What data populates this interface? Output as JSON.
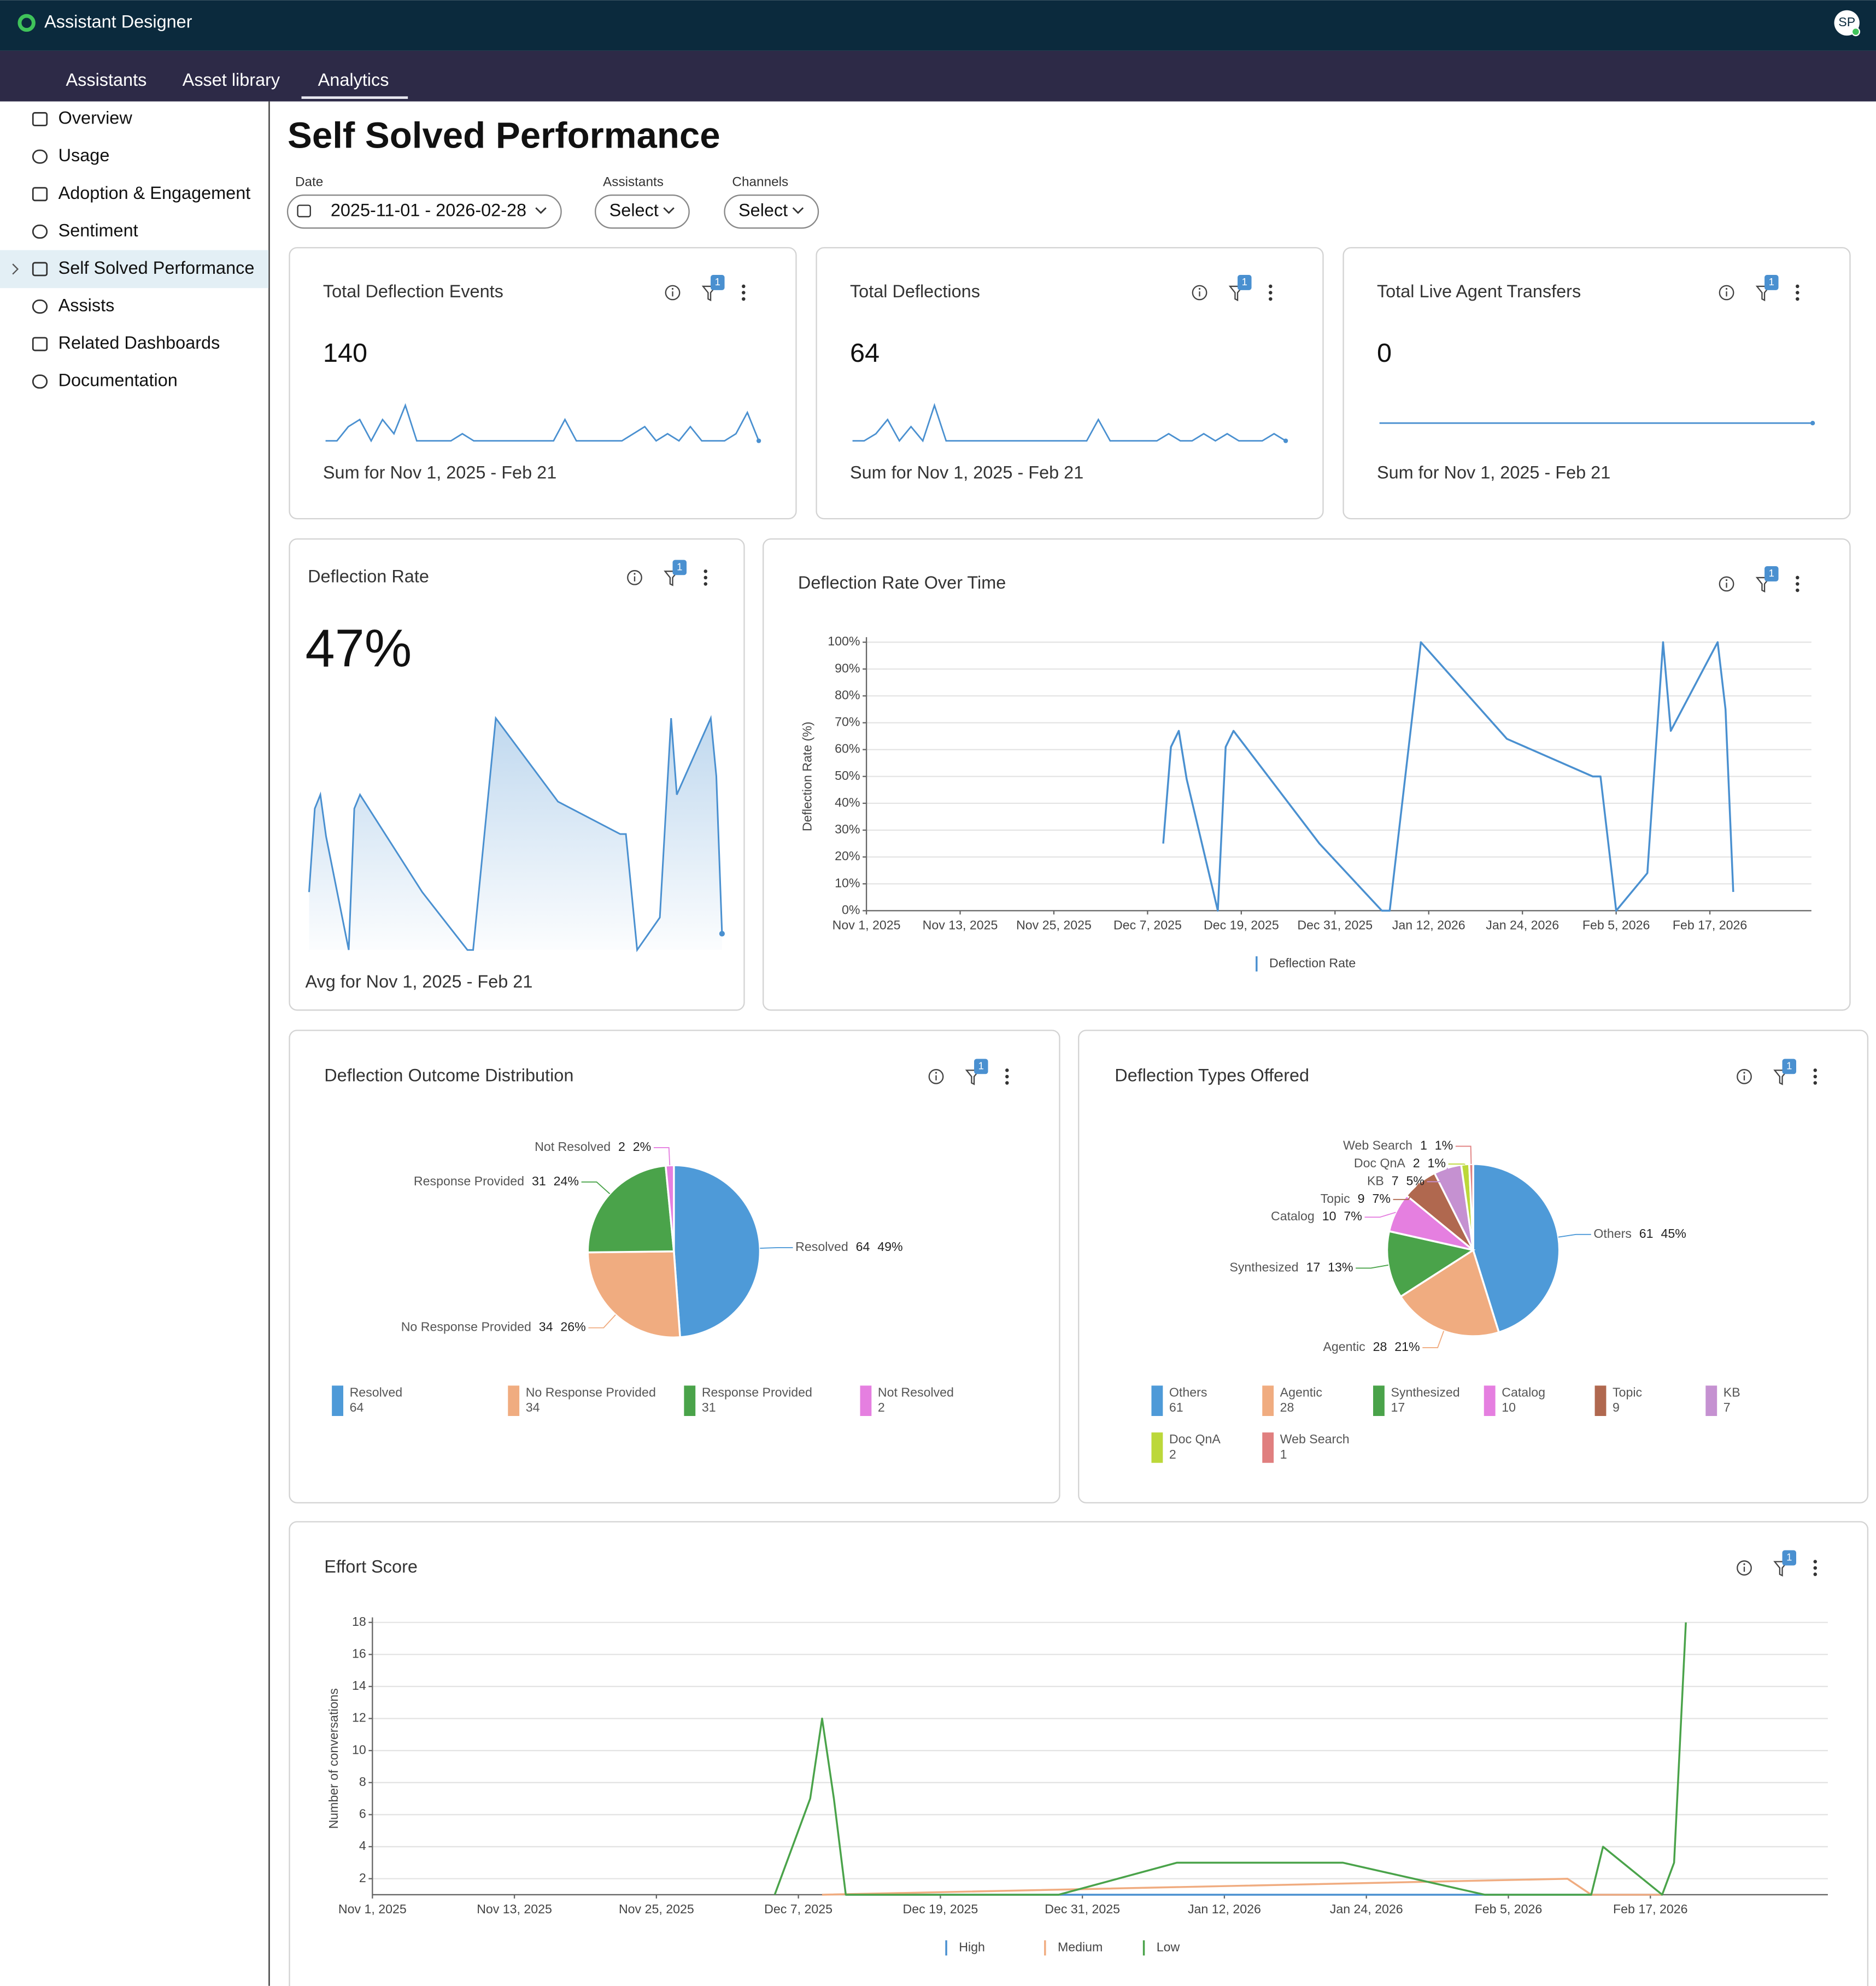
{
  "header": {
    "app_title": "Assistant Designer",
    "avatar": "SP"
  },
  "nav_tabs": [
    "Assistants",
    "Asset library",
    "Analytics"
  ],
  "sidebar": [
    "Overview",
    "Usage",
    "Adoption & Engagement",
    "Sentiment",
    "Self Solved Performance",
    "Assists",
    "Related Dashboards",
    "Documentation"
  ],
  "page_title": "Self Solved Performance",
  "filters": [
    {
      "label": "Date",
      "value": "2025-11-01 - 2026-02-28"
    },
    {
      "label": "Assistants",
      "value": "Select"
    },
    {
      "label": "Channels",
      "value": "Select"
    }
  ],
  "chart_data": [
    {
      "type": "sparkline",
      "title": "Total Deflection Events",
      "kpi": 140,
      "caption": "Sum for Nov 1, 2025 - Feb 21",
      "filter_badge": "1",
      "color": "#4a90d0",
      "values": [
        0,
        0,
        2,
        3,
        0,
        3,
        1,
        5,
        0,
        0,
        0,
        0,
        1,
        0,
        0,
        0,
        0,
        0,
        0,
        0,
        0,
        3,
        0,
        0,
        0,
        0,
        0,
        1,
        2,
        0,
        1,
        0,
        2,
        0,
        0,
        0,
        1,
        4,
        0
      ]
    },
    {
      "type": "sparkline",
      "title": "Total Deflections",
      "kpi": 64,
      "caption": "Sum for Nov 1, 2025 - Feb 21",
      "filter_badge": "1",
      "color": "#4a90d0",
      "values": [
        0,
        0,
        1,
        3,
        0,
        2,
        0,
        5,
        0,
        0,
        0,
        0,
        0,
        0,
        0,
        0,
        0,
        0,
        0,
        0,
        0,
        3,
        0,
        0,
        0,
        0,
        0,
        1,
        0,
        0,
        1,
        0,
        1,
        0,
        0,
        0,
        1,
        0
      ]
    },
    {
      "type": "sparkline",
      "title": "Total Live Agent Transfers",
      "kpi": 0,
      "caption": "Sum for Nov 1, 2025 - Feb 21",
      "filter_badge": "1",
      "color": "#4a90d0",
      "values": [
        0,
        0,
        0,
        0,
        0,
        0,
        0,
        0,
        0,
        0,
        0,
        0,
        0,
        0,
        0,
        0,
        0,
        0,
        0,
        0
      ]
    },
    {
      "type": "area-sparkline",
      "title": "Deflection Rate",
      "kpi": "47%",
      "caption": "Avg for Nov 1, 2025 - Feb 21",
      "filter_badge": "1",
      "color": "#4a90d0",
      "x": [
        "2025-12-09",
        "2025-12-10",
        "2025-12-11",
        "2025-12-12",
        "2025-12-16",
        "2025-12-17",
        "2025-12-18",
        "2025-12-29",
        "2026-01-06",
        "2026-01-07",
        "2026-01-11",
        "2026-01-22",
        "2026-02-02",
        "2026-02-03",
        "2026-02-05",
        "2026-02-09",
        "2026-02-11",
        "2026-02-12",
        "2026-02-18",
        "2026-02-19",
        "2026-02-20"
      ],
      "values": [
        25,
        61,
        67,
        49,
        0,
        61,
        67,
        25,
        0,
        0,
        100,
        64,
        50,
        50,
        0,
        14,
        100,
        67,
        100,
        75,
        7
      ]
    },
    {
      "type": "line",
      "title": "Deflection Rate Over Time",
      "filter_badge": "1",
      "y_label": "Deflection Rate (%)",
      "grid": true,
      "x": [
        "2025-12-09",
        "2025-12-10",
        "2025-12-11",
        "2025-12-12",
        "2025-12-16",
        "2025-12-17",
        "2025-12-18",
        "2025-12-29",
        "2026-01-06",
        "2026-01-07",
        "2026-01-11",
        "2026-01-22",
        "2026-02-02",
        "2026-02-03",
        "2026-02-05",
        "2026-02-09",
        "2026-02-11",
        "2026-02-12",
        "2026-02-18",
        "2026-02-19",
        "2026-02-20"
      ],
      "series": [
        {
          "name": "Deflection Rate",
          "color": "#4a90d0",
          "values": [
            25,
            61,
            67,
            49,
            0,
            61,
            67,
            25,
            0,
            0,
            100,
            64,
            50,
            50,
            0,
            14,
            100,
            67,
            100,
            75,
            7
          ]
        }
      ],
      "xlim": [
        "2025-11-01",
        "2026-03-02"
      ],
      "xticks": [
        {
          "value": "2025-11-01",
          "label": "Nov 1, 2025"
        },
        {
          "value": "2025-11-13",
          "label": "Nov 13, 2025"
        },
        {
          "value": "2025-11-25",
          "label": "Nov 25, 2025"
        },
        {
          "value": "2025-12-07",
          "label": "Dec 7, 2025"
        },
        {
          "value": "2025-12-19",
          "label": "Dec 19, 2025"
        },
        {
          "value": "2025-12-31",
          "label": "Dec 31, 2025"
        },
        {
          "value": "2026-01-12",
          "label": "Jan 12, 2026"
        },
        {
          "value": "2026-01-24",
          "label": "Jan 24, 2026"
        },
        {
          "value": "2026-02-05",
          "label": "Feb 5, 2026"
        },
        {
          "value": "2026-02-17",
          "label": "Feb 17, 2026"
        }
      ],
      "ylim": [
        0,
        100
      ],
      "yticks": [
        {
          "value": 0,
          "label": "0%"
        },
        {
          "value": 10,
          "label": "10%"
        },
        {
          "value": 20,
          "label": "20%"
        },
        {
          "value": 30,
          "label": "30%"
        },
        {
          "value": 40,
          "label": "40%"
        },
        {
          "value": 50,
          "label": "50%"
        },
        {
          "value": 60,
          "label": "60%"
        },
        {
          "value": 70,
          "label": "70%"
        },
        {
          "value": 80,
          "label": "80%"
        },
        {
          "value": 90,
          "label": "90%"
        },
        {
          "value": 100,
          "label": "100%"
        }
      ]
    },
    {
      "type": "pie",
      "title": "Deflection Outcome Distribution",
      "filter_badge": "1",
      "categories": [
        "Resolved",
        "No Response Provided",
        "Response Provided",
        "Not Resolved"
      ],
      "values": [
        64,
        34,
        31,
        2
      ],
      "percent_labels": [
        "49%",
        "26%",
        "24%",
        "2%"
      ],
      "colors": [
        "#4e9ad8",
        "#f0ac80",
        "#4aa34a",
        "#e57fe0"
      ]
    },
    {
      "type": "pie",
      "title": "Deflection Types Offered",
      "filter_badge": "1",
      "categories": [
        "Others",
        "Agentic",
        "Synthesized",
        "Catalog",
        "Topic",
        "KB",
        "Doc QnA",
        "Web Search"
      ],
      "values": [
        61,
        28,
        17,
        10,
        9,
        7,
        2,
        1
      ],
      "percent_labels": [
        "45%",
        "21%",
        "13%",
        "7%",
        "7%",
        "5%",
        "1%",
        "1%"
      ],
      "colors": [
        "#4e9ad8",
        "#f0ac80",
        "#4aa34a",
        "#e57fe0",
        "#b0684f",
        "#c591d1",
        "#bcd83a",
        "#e07f7f"
      ]
    },
    {
      "type": "line",
      "title": "Effort Score",
      "filter_badge": "1",
      "y_label": "Number of conversations",
      "grid": true,
      "series": [
        {
          "name": "High",
          "color": "#4a90d0",
          "x": [
            "2025-12-11",
            "2026-02-18"
          ],
          "values": [
            1,
            1
          ]
        },
        {
          "name": "Medium",
          "color": "#f0ac80",
          "x": [
            "2025-12-09",
            "2026-02-10",
            "2026-02-12",
            "2026-02-18"
          ],
          "values": [
            1,
            2,
            1,
            1
          ]
        },
        {
          "name": "Low",
          "color": "#4aa34a",
          "x": [
            "2025-12-05",
            "2025-12-08",
            "2025-12-09",
            "2025-12-10",
            "2025-12-11",
            "2025-12-29",
            "2026-01-08",
            "2026-01-22",
            "2026-02-03",
            "2026-02-12",
            "2026-02-13",
            "2026-02-18",
            "2026-02-19",
            "2026-02-20"
          ],
          "values": [
            1,
            7,
            12,
            7,
            1,
            1,
            3,
            3,
            1,
            1,
            4,
            1,
            3,
            18
          ]
        }
      ],
      "xlim": [
        "2025-11-01",
        "2026-03-04"
      ],
      "xticks": [
        {
          "value": "2025-11-01",
          "label": "Nov 1, 2025"
        },
        {
          "value": "2025-11-13",
          "label": "Nov 13, 2025"
        },
        {
          "value": "2025-11-25",
          "label": "Nov 25, 2025"
        },
        {
          "value": "2025-12-07",
          "label": "Dec 7, 2025"
        },
        {
          "value": "2025-12-19",
          "label": "Dec 19, 2025"
        },
        {
          "value": "2025-12-31",
          "label": "Dec 31, 2025"
        },
        {
          "value": "2026-01-12",
          "label": "Jan 12, 2026"
        },
        {
          "value": "2026-01-24",
          "label": "Jan 24, 2026"
        },
        {
          "value": "2026-02-05",
          "label": "Feb 5, 2026"
        },
        {
          "value": "2026-02-17",
          "label": "Feb 17, 2026"
        }
      ],
      "ylim": [
        1,
        18
      ],
      "yticks": [
        2,
        4,
        6,
        8,
        10,
        12,
        14,
        16,
        18
      ]
    }
  ]
}
